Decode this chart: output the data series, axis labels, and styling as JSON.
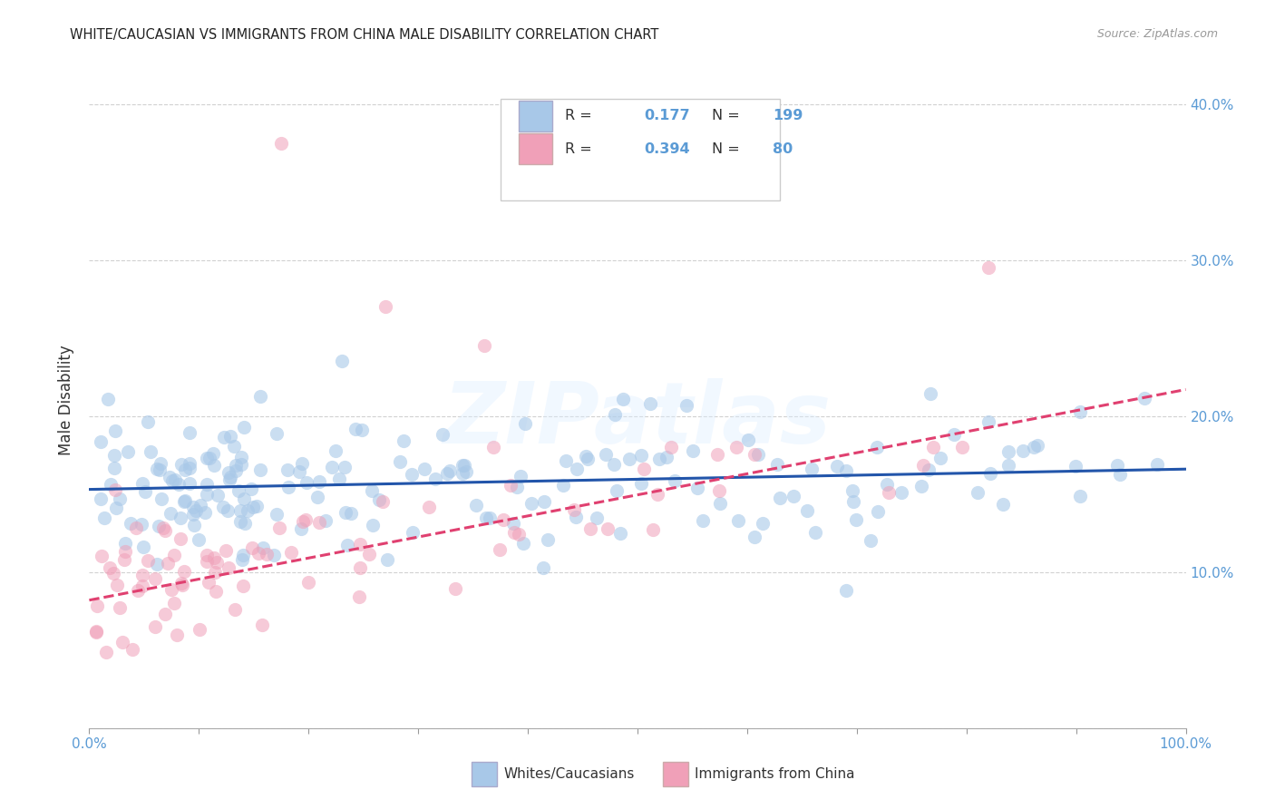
{
  "title": "WHITE/CAUCASIAN VS IMMIGRANTS FROM CHINA MALE DISABILITY CORRELATION CHART",
  "source": "Source: ZipAtlas.com",
  "ylabel": "Male Disability",
  "bg_color": "#ffffff",
  "plot_bg_color": "#ffffff",
  "blue_color": "#A8C8E8",
  "pink_color": "#F0A0B8",
  "blue_line_color": "#2255AA",
  "pink_line_color": "#E04070",
  "grid_color": "#CCCCCC",
  "axis_label_color": "#5B9BD5",
  "r_blue": 0.177,
  "n_blue": 199,
  "r_pink": 0.394,
  "n_pink": 80,
  "xlim": [
    0,
    1
  ],
  "ylim": [
    0,
    0.42
  ],
  "blue_intercept": 0.153,
  "blue_slope": 0.013,
  "pink_intercept": 0.082,
  "pink_slope": 0.135,
  "watermark": "ZIPatlas",
  "yticks": [
    0.0,
    0.1,
    0.2,
    0.3,
    0.4
  ],
  "ytick_labels_right": [
    "",
    "10.0%",
    "20.0%",
    "30.0%",
    "40.0%"
  ],
  "xticks": [
    0.0,
    0.1,
    0.2,
    0.3,
    0.4,
    0.5,
    0.6,
    0.7,
    0.8,
    0.9,
    1.0
  ],
  "xtick_labels": [
    "0.0%",
    "",
    "",
    "",
    "",
    "",
    "",
    "",
    "",
    "",
    "100.0%"
  ]
}
